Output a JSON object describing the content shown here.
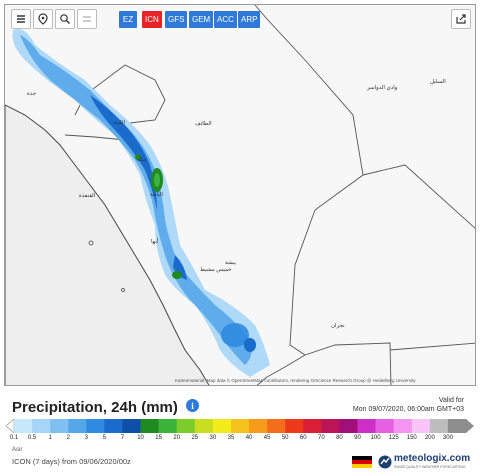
{
  "toolbar": {
    "models": [
      {
        "label": "EZ",
        "active": false
      },
      {
        "label": "ICN",
        "active": true
      },
      {
        "label": "GFS",
        "active": false
      },
      {
        "label": "GEM",
        "active": false
      },
      {
        "label": "ACC",
        "active": false
      },
      {
        "label": "ARP",
        "active": false
      }
    ],
    "colors": {
      "button": "#2f7ad8",
      "active": "#e8242b"
    }
  },
  "map": {
    "attribution": "Kartenmaterial: Map data © OpenStreetMap contributors, rendering GIScience Research Group @ Heidelberg University",
    "places": [
      {
        "label": "Jeddah",
        "text": "ﺟﺪﺓ"
      },
      {
        "label": "Al Lith",
        "text": "ﺍﻟﻠﻴﺚ"
      },
      {
        "label": "Al Qunfudhah",
        "text": "ﺍﻟﻘﻨﻔﺬﺓ"
      },
      {
        "label": "Al Baha",
        "text": "ﺍﻟﺒﺎﺣﺔ"
      },
      {
        "label": "Bisha",
        "text": "ﺑﻴﺸﺔ"
      },
      {
        "label": "Abha",
        "text": "ﺃﺑﻬﺎ"
      },
      {
        "label": "Khamis Mushait",
        "text": "ﺧﻤﻴﺲ ﻣﺸﻴﻂ"
      },
      {
        "label": "Najran",
        "text": "ﻧﺠﺮﺍﻥ"
      },
      {
        "label": "Wadi ad-Dawasir",
        "text": "ﻭﺍﺩﻱ ﺍﻟﺪﻭﺍﺳﺮ"
      },
      {
        "label": "Sulayyil",
        "text": "ﺍﻟﺴﻠﻴﻞ"
      },
      {
        "label": "Taif",
        "text": "ﺍﻟﻄﺎﺋﻒ"
      },
      {
        "label": "Makkah",
        "text": "ﻣﻜﺔ"
      }
    ]
  },
  "header": {
    "title": "Precipitation, 24h (mm)",
    "info_icon": "i",
    "valid_for": "Valid for",
    "valid_time": "Mon 09/07/2020, 06:00am GMT+03"
  },
  "legend": {
    "ticks": [
      "0.1",
      "0.5",
      "1",
      "2",
      "3",
      "5",
      "7",
      "10",
      "15",
      "20",
      "25",
      "30",
      "35",
      "40",
      "45",
      "50",
      "60",
      "70",
      "80",
      "90",
      "100",
      "125",
      "150",
      "200",
      "300"
    ],
    "colors": [
      "#c7e7fb",
      "#a6d5f7",
      "#7fc0f1",
      "#56a6ea",
      "#2f8ae0",
      "#1a6bcc",
      "#0e4fa9",
      "#1f8a1f",
      "#3cb43c",
      "#7ccd2a",
      "#c8de1e",
      "#f3ec1a",
      "#f6c21c",
      "#f79b1b",
      "#f36d1b",
      "#ec3b1b",
      "#d91f36",
      "#bb1557",
      "#a10f7a",
      "#cd2ec6",
      "#e660e2",
      "#f395f1",
      "#f9c5f8",
      "#bdbdbd",
      "#8e8e8e"
    ]
  },
  "footer": {
    "site": "Asir",
    "run": "ICON (7 days) from 09/06/2020/00z",
    "brand": "meteologix.com",
    "tagline": "SWISS QUALITY WEATHER FORECASTING"
  }
}
